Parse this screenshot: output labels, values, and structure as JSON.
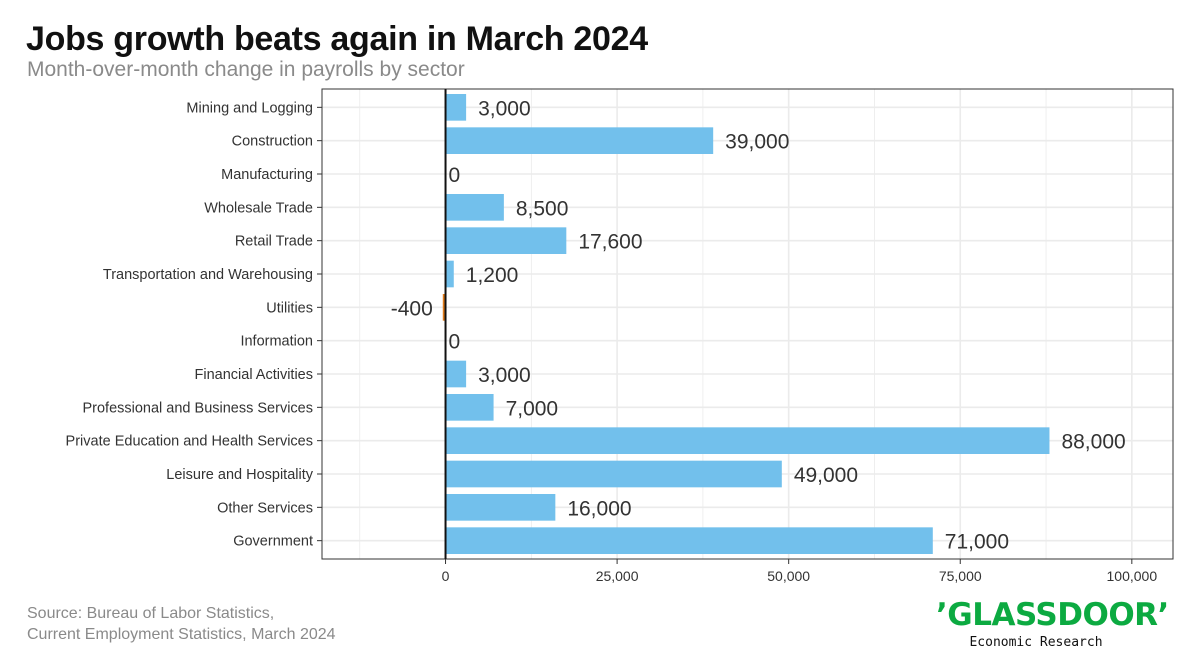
{
  "header": {
    "title": "Jobs growth beats again in March 2024",
    "subtitle": "Month-over-month change in payrolls by sector"
  },
  "footer": {
    "source_line1": "Source: Bureau of Labor Statistics,",
    "source_line2": "Current Employment Statistics, March 2024"
  },
  "logo": {
    "wordmark": "’GLASSDOOR’",
    "tagline": "Economic Research",
    "color": "#0caa41"
  },
  "chart_data": {
    "type": "bar",
    "orientation": "horizontal",
    "categories": [
      "Mining and Logging",
      "Construction",
      "Manufacturing",
      "Wholesale Trade",
      "Retail Trade",
      "Transportation and Warehousing",
      "Utilities",
      "Information",
      "Financial Activities",
      "Professional and Business Services",
      "Private Education and Health Services",
      "Leisure and Hospitality",
      "Other Services",
      "Government"
    ],
    "values": [
      3000,
      39000,
      0,
      8500,
      17600,
      1200,
      -400,
      0,
      3000,
      7000,
      88000,
      49000,
      16000,
      71000
    ],
    "data_labels": [
      "3,000",
      "39,000",
      "0",
      "8,500",
      "17,600",
      "1,200",
      "-400",
      "0",
      "3,000",
      "7,000",
      "88,000",
      "49,000",
      "16,000",
      "71,000"
    ],
    "xlim": [
      -18000,
      106000
    ],
    "x_ticks": [
      0,
      25000,
      50000,
      75000,
      100000
    ],
    "x_tick_labels": [
      "0",
      "25,000",
      "50,000",
      "75,000",
      "100,000"
    ],
    "positive_color": "#72c0ec",
    "negative_color": "#e07b1a",
    "grid": true
  }
}
